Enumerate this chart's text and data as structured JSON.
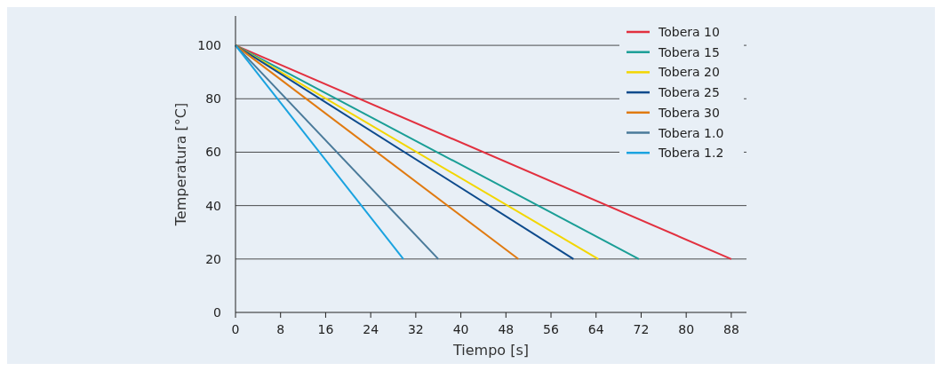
{
  "chart_data": {
    "type": "line",
    "xlabel": "Tiempo [s]",
    "ylabel": "Temperatura [°C]",
    "xlim": [
      0,
      90.7
    ],
    "ylim": [
      0,
      111
    ],
    "xticks": [
      0,
      8,
      16,
      24,
      32,
      40,
      48,
      56,
      64,
      72,
      80,
      88
    ],
    "yticks": [
      0,
      20,
      40,
      60,
      80,
      100
    ],
    "grid": "y",
    "legend": "top right",
    "marker": "none",
    "line_style": "solid",
    "series": [
      {
        "name": "Tobera 10",
        "color": "#e2303f",
        "x": [
          0,
          88
        ],
        "values": [
          100,
          20
        ]
      },
      {
        "name": "Tobera 15",
        "color": "#1a9e96",
        "x": [
          0,
          71.6
        ],
        "values": [
          100,
          20
        ]
      },
      {
        "name": "Tobera 20",
        "color": "#f3d600",
        "x": [
          0,
          64.4
        ],
        "values": [
          100,
          20
        ]
      },
      {
        "name": "Tobera 25",
        "color": "#0d4a8c",
        "x": [
          0,
          60
        ],
        "values": [
          100,
          20
        ]
      },
      {
        "name": "Tobera 30",
        "color": "#e07a10",
        "x": [
          0,
          50.2
        ],
        "values": [
          100,
          20
        ]
      },
      {
        "name": "Tobera 1.0",
        "color": "#4a7a9a",
        "x": [
          0,
          36
        ],
        "values": [
          100,
          20
        ]
      },
      {
        "name": "Tobera 1.2",
        "color": "#1aa3e0",
        "x": [
          0,
          29.8
        ],
        "values": [
          100,
          20
        ]
      }
    ]
  }
}
